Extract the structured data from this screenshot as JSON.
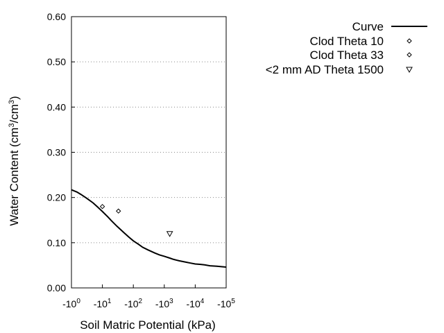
{
  "chart_data": {
    "type": "line",
    "title": "",
    "xlabel": "Soil Matric Potential (kPa)",
    "ylabel_main": "Water Content (cm",
    "ylabel_sup1": "3",
    "ylabel_mid": "/cm",
    "ylabel_sup2": "3",
    "ylabel_end": ")",
    "x_scale": "log",
    "xlim": [
      -1,
      -100000
    ],
    "ylim": [
      0.0,
      0.6
    ],
    "grid": "horizontal-dotted",
    "legend_position": "top-right",
    "x_ticks": [
      {
        "value": -1,
        "base": "-10",
        "exp": "0"
      },
      {
        "value": -10,
        "base": "-10",
        "exp": "1"
      },
      {
        "value": -100,
        "base": "-10",
        "exp": "2"
      },
      {
        "value": -1000,
        "base": "-10",
        "exp": "3"
      },
      {
        "value": -10000,
        "base": "-10",
        "exp": "4"
      },
      {
        "value": -100000,
        "base": "-10",
        "exp": "5"
      }
    ],
    "y_ticks": [
      {
        "value": 0.0,
        "label": "0.00"
      },
      {
        "value": 0.1,
        "label": "0.10"
      },
      {
        "value": 0.2,
        "label": "0.20"
      },
      {
        "value": 0.3,
        "label": "0.30"
      },
      {
        "value": 0.4,
        "label": "0.40"
      },
      {
        "value": 0.5,
        "label": "0.50"
      },
      {
        "value": 0.6,
        "label": "0.60"
      }
    ],
    "series": [
      {
        "name": "Curve",
        "kind": "line",
        "x": [
          -1,
          -1.5,
          -2,
          -3,
          -5,
          -7,
          -10,
          -15,
          -20,
          -30,
          -50,
          -70,
          -100,
          -150,
          -200,
          -300,
          -500,
          -700,
          -1000,
          -1500,
          -2000,
          -3000,
          -5000,
          -7000,
          -10000,
          -15000,
          -20000,
          -30000,
          -50000,
          -70000,
          -100000
        ],
        "y": [
          0.217,
          0.212,
          0.207,
          0.199,
          0.188,
          0.179,
          0.169,
          0.157,
          0.148,
          0.136,
          0.122,
          0.113,
          0.104,
          0.096,
          0.09,
          0.084,
          0.077,
          0.073,
          0.07,
          0.066,
          0.063,
          0.06,
          0.057,
          0.055,
          0.053,
          0.052,
          0.051,
          0.049,
          0.048,
          0.047,
          0.046
        ]
      },
      {
        "name": "Clod Theta 10",
        "kind": "scatter",
        "marker": "diamond",
        "x": [
          -10
        ],
        "y": [
          0.18
        ]
      },
      {
        "name": "Clod Theta 33",
        "kind": "scatter",
        "marker": "diamond",
        "x": [
          -33
        ],
        "y": [
          0.17
        ]
      },
      {
        "name": "<2 mm AD Theta 1500",
        "kind": "scatter",
        "marker": "triangle-down",
        "x": [
          -1500
        ],
        "y": [
          0.12
        ]
      }
    ]
  }
}
